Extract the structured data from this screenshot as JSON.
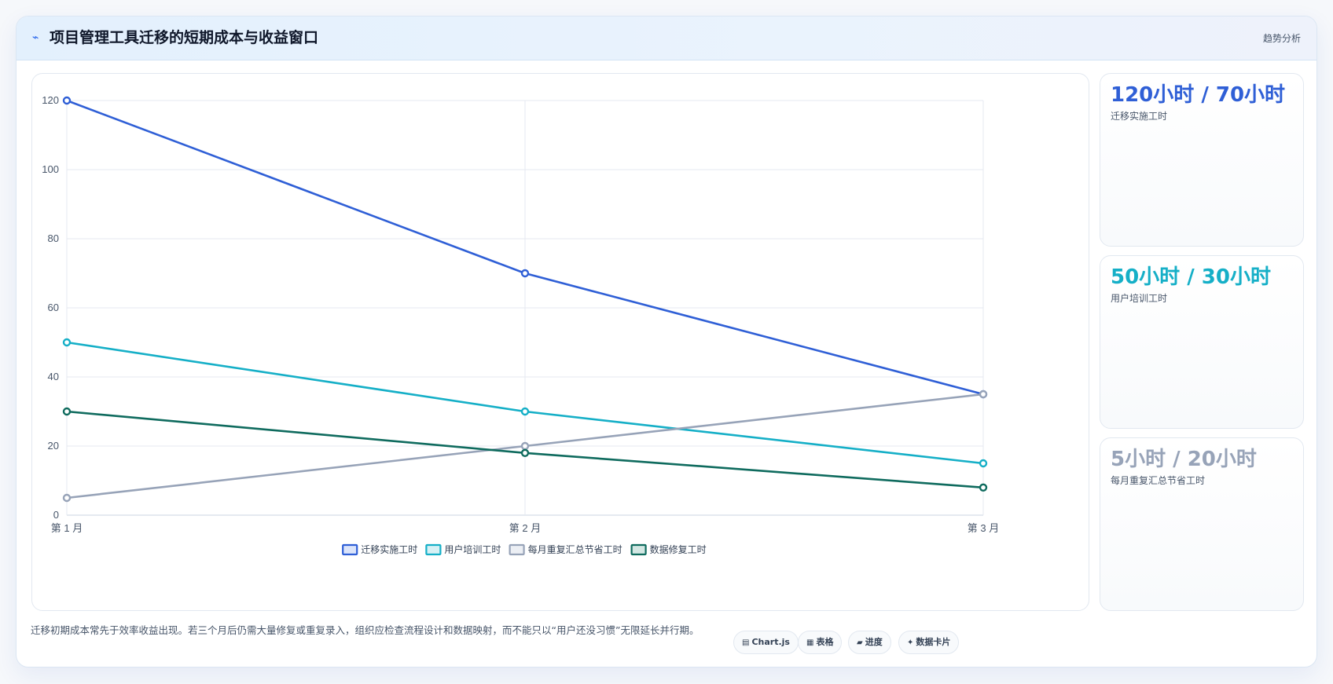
{
  "header": {
    "icon": "trend-icon",
    "title": "项目管理工具迁移的短期成本与收益窗口",
    "tag": "趋势分析"
  },
  "chart_data": {
    "type": "line",
    "categories": [
      "第 1 月",
      "第 2 月",
      "第 3 月"
    ],
    "ylim": [
      0,
      120
    ],
    "yticks": [
      0,
      20,
      40,
      60,
      80,
      100,
      120
    ],
    "grid": true,
    "legend_position": "bottom",
    "series": [
      {
        "name": "迁移实施工时",
        "values": [
          120,
          70,
          35
        ],
        "color": "#2f5fd6",
        "fill": "#dbe4fa"
      },
      {
        "name": "用户培训工时",
        "values": [
          50,
          30,
          15
        ],
        "color": "#15afc7",
        "fill": "#d7f1f5"
      },
      {
        "name": "每月重复汇总节省工时",
        "values": [
          5,
          20,
          35
        ],
        "color": "#97a3b8",
        "fill": "#eceff4"
      },
      {
        "name": "数据修复工时",
        "values": [
          30,
          18,
          8
        ],
        "color": "#0f6b5e",
        "fill": "#d3e7e3"
      }
    ]
  },
  "stats": [
    {
      "value": "120小时 / 70小时",
      "label": "迁移实施工时",
      "color": "#2f5fd6"
    },
    {
      "value": "50小时 / 30小时",
      "label": "用户培训工时",
      "color": "#15afc7"
    },
    {
      "value": "5小时 / 20小时",
      "label": "每月重复汇总节省工时",
      "color": "#97a3b8"
    }
  ],
  "footnote": "迁移初期成本常先于效率收益出现。若三个月后仍需大量修复或重复录入，组织应检查流程设计和数据映射，而不能只以“用户还没习惯”无限延长并行期。",
  "pills": [
    {
      "icon": "chart-icon",
      "glyph": "▤",
      "label": "Chart.js"
    },
    {
      "icon": "table-icon",
      "glyph": "▦",
      "label": "表格"
    },
    {
      "icon": "progress-icon",
      "glyph": "▰",
      "label": "进度"
    },
    {
      "icon": "sparkle-icon",
      "glyph": "✦",
      "label": "数据卡片"
    }
  ]
}
